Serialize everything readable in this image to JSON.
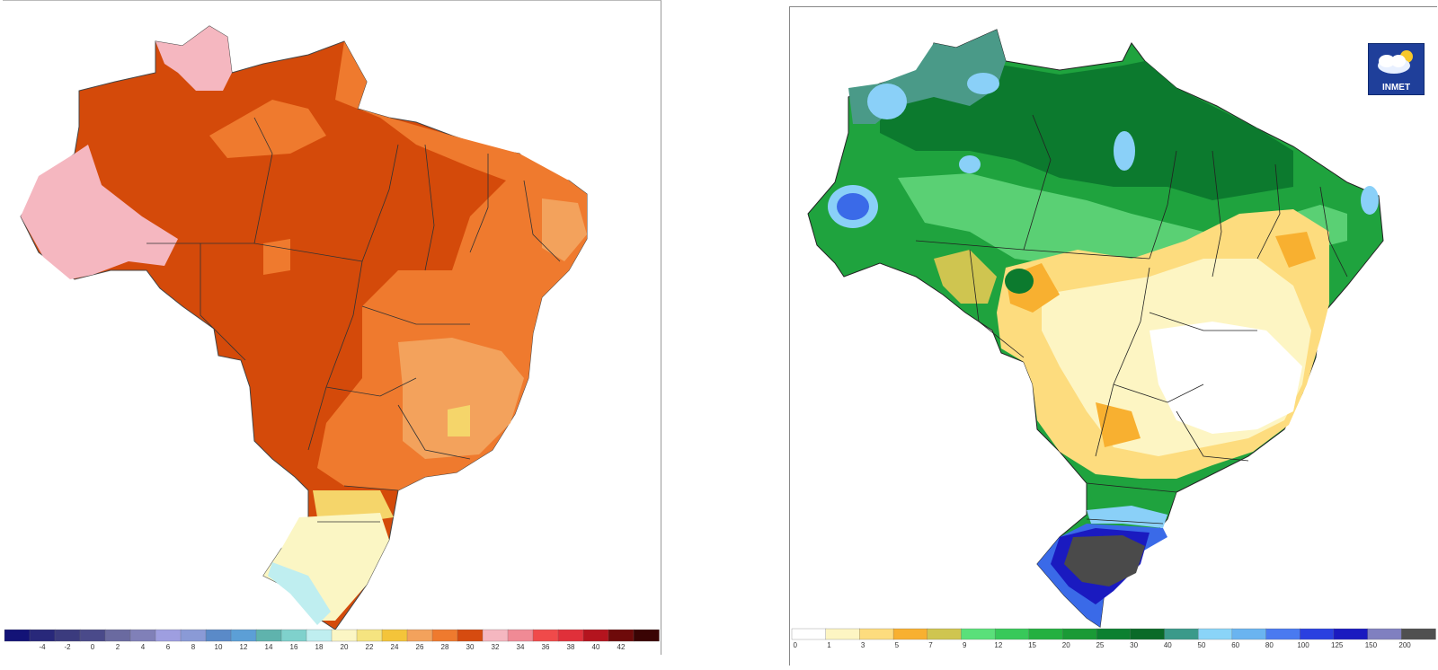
{
  "left_map": {
    "legend": {
      "labels": [
        "-4",
        "-2",
        "0",
        "2",
        "4",
        "6",
        "8",
        "10",
        "12",
        "14",
        "16",
        "18",
        "20",
        "22",
        "24",
        "26",
        "28",
        "30",
        "32",
        "34",
        "36",
        "38",
        "40",
        "42"
      ],
      "colors": [
        "#131377",
        "#28287a",
        "#3b3b7e",
        "#4a4a8a",
        "#6a6aa0",
        "#8080b8",
        "#9e9ee0",
        "#8a9ad6",
        "#5a8ac8",
        "#5c9fd6",
        "#5fb3ad",
        "#7fd1cc",
        "#bfeef0",
        "#fbf6c4",
        "#f5e480",
        "#f4c43a",
        "#f3a25c",
        "#ef7a2e",
        "#d64b10",
        "#f5b7c0",
        "#f08a95",
        "#f04a4a",
        "#e0303a",
        "#b4141e",
        "#6e0a0a",
        "#3a0404"
      ]
    },
    "regions": {
      "base": "#d44a0a",
      "orange": "#ef7a2e",
      "light_orange": "#f3a25c",
      "yellow": "#f5d56a",
      "cream": "#fbf6c4",
      "pink": "#f5b7c0",
      "cyan": "#bfeef0"
    }
  },
  "right_map": {
    "logo_text": "INMET",
    "legend": {
      "labels": [
        "0",
        "1",
        "3",
        "5",
        "7",
        "9",
        "12",
        "15",
        "20",
        "25",
        "30",
        "40",
        "50",
        "60",
        "80",
        "100",
        "125",
        "150",
        "200"
      ],
      "colors": [
        "#ffffff",
        "#fdf5c3",
        "#fddc7e",
        "#f8b030",
        "#cfc550",
        "#5ae07a",
        "#38c95a",
        "#24b040",
        "#1a9a36",
        "#0c8030",
        "#0a6a28",
        "#3a9a8a",
        "#8ad4f8",
        "#6ab4f0",
        "#4a7af0",
        "#2a40e0",
        "#1a1ac0",
        "#8080c0",
        "#505050"
      ]
    },
    "regions": {
      "green": "#1fa33e",
      "dark_green": "#0c7a2e",
      "light_green": "#5ad074",
      "teal": "#4a9a88",
      "light_blue": "#8ad0f8",
      "blue": "#3a6ae8",
      "dark_blue": "#1a1ac0",
      "gray": "#4a4a4a",
      "cream": "#fdf5c3",
      "yellow": "#fddc7e",
      "orange": "#f8b030",
      "olive": "#cfc550"
    }
  }
}
